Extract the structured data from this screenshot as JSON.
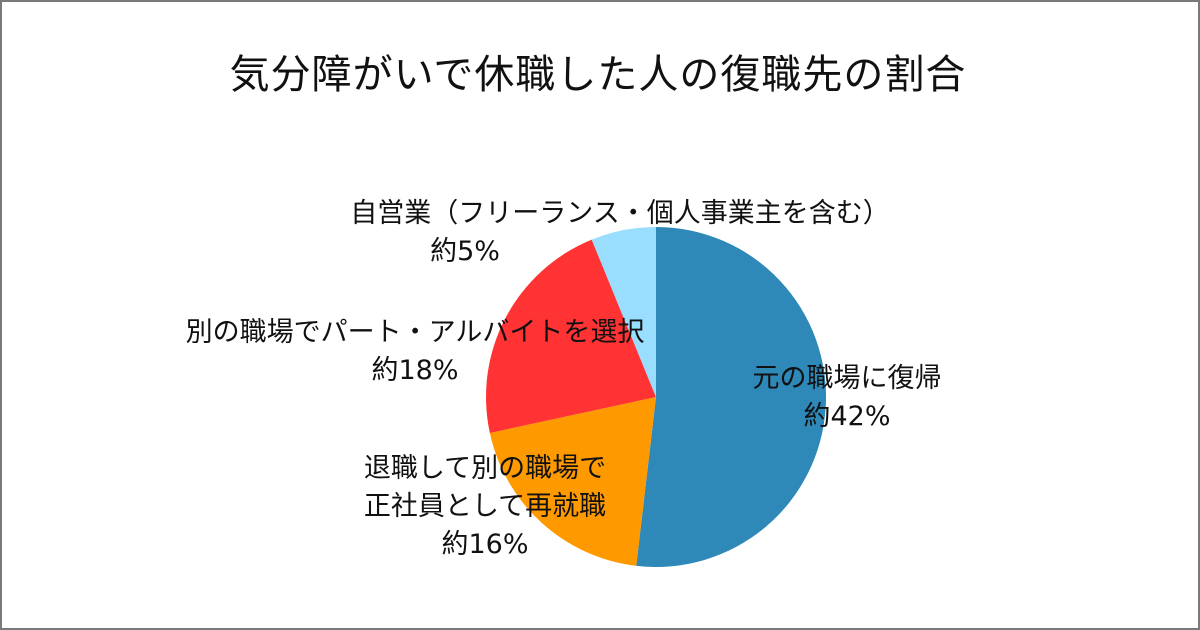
{
  "title": "気分障がいで休職した人の復職先の割合",
  "chart_data": {
    "type": "pie",
    "title": "気分障がいで休職した人の復職先の割合",
    "unit": "%",
    "slices": [
      {
        "label": "元の職場に復帰",
        "value_label": "約42%",
        "value": 42,
        "color": "#2e88b8"
      },
      {
        "label": "退職して別の職場で正社員として再就職",
        "value_label": "約16%",
        "value": 16,
        "color": "#ff9900"
      },
      {
        "label": "別の職場でパート・アルバイトを選択",
        "value_label": "約18%",
        "value": 18,
        "color": "#ff3333"
      },
      {
        "label": "自営業（フリーランス・個人事業主を含む）",
        "value_label": "約5%",
        "value": 5,
        "color": "#99ddff"
      }
    ]
  },
  "labels": {
    "return": {
      "line1": "元の職場に復帰",
      "line2": "約42%"
    },
    "reemploy": {
      "line1": "退職して別の職場で",
      "line2": "正社員として再就職",
      "line3": "約16%"
    },
    "parttime": {
      "line1": "別の職場でパート・アルバイトを選択",
      "line2": "約18%"
    },
    "selfemployed": {
      "line1": "自営業（フリーランス・個人事業主を含む）",
      "line2": "約5%"
    }
  }
}
